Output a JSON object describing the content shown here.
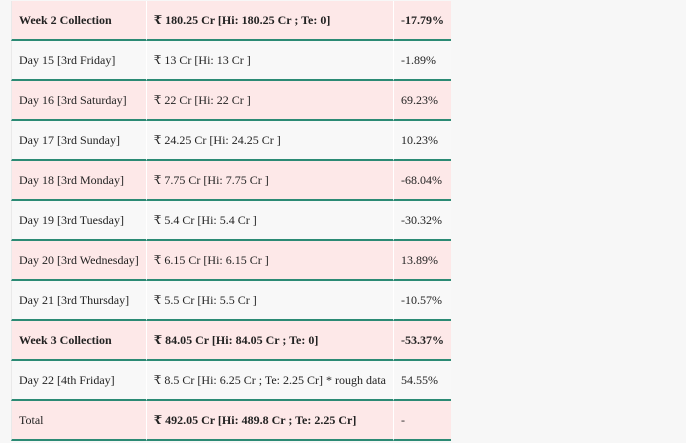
{
  "table": {
    "rows": [
      {
        "label": "Week 2 Collection",
        "amount": "₹ 180.25 Cr [Hi: 180.25 Cr ; Te: 0]",
        "change": "-17.79%",
        "bold": true,
        "shade": "pink"
      },
      {
        "label": "Day 15 [3rd Friday]",
        "amount": "₹ 13 Cr [Hi: 13 Cr ]",
        "change": "-1.89%",
        "bold": false,
        "shade": "white"
      },
      {
        "label": "Day 16 [3rd Saturday]",
        "amount": "₹ 22 Cr [Hi: 22 Cr ]",
        "change": "69.23%",
        "bold": false,
        "shade": "pink"
      },
      {
        "label": "Day 17 [3rd Sunday]",
        "amount": "₹ 24.25 Cr [Hi: 24.25 Cr ]",
        "change": "10.23%",
        "bold": false,
        "shade": "white"
      },
      {
        "label": "Day 18 [3rd Monday]",
        "amount": "₹ 7.75 Cr [Hi: 7.75 Cr ]",
        "change": "-68.04%",
        "bold": false,
        "shade": "pink"
      },
      {
        "label": "Day 19 [3rd Tuesday]",
        "amount": "₹ 5.4 Cr [Hi: 5.4 Cr ]",
        "change": "-30.32%",
        "bold": false,
        "shade": "white"
      },
      {
        "label": "Day 20 [3rd Wednesday]",
        "amount": "₹ 6.15 Cr [Hi: 6.15 Cr ]",
        "change": "13.89%",
        "bold": false,
        "shade": "pink"
      },
      {
        "label": "Day 21 [3rd Thursday]",
        "amount": "₹ 5.5 Cr [Hi: 5.5 Cr ]",
        "change": "-10.57%",
        "bold": false,
        "shade": "white"
      },
      {
        "label": "Week 3 Collection",
        "amount": "₹ 84.05 Cr [Hi: 84.05 Cr ; Te: 0]",
        "change": "-53.37%",
        "bold": true,
        "shade": "pink"
      },
      {
        "label": "Day 22 [4th Friday]",
        "amount": "₹ 8.5 Cr [Hi: 6.25 Cr ; Te: 2.25 Cr] * rough data",
        "change": "54.55%",
        "bold": false,
        "shade": "white"
      },
      {
        "label": "Total",
        "amount": "₹ 492.05 Cr [Hi: 489.8 Cr ; Te: 2.25 Cr]",
        "change": "-",
        "bold": "amount",
        "shade": "pink"
      }
    ]
  },
  "colors": {
    "row_pink": "#fde8e8",
    "row_white": "#f8f8f8",
    "divider": "#2b8a74"
  }
}
